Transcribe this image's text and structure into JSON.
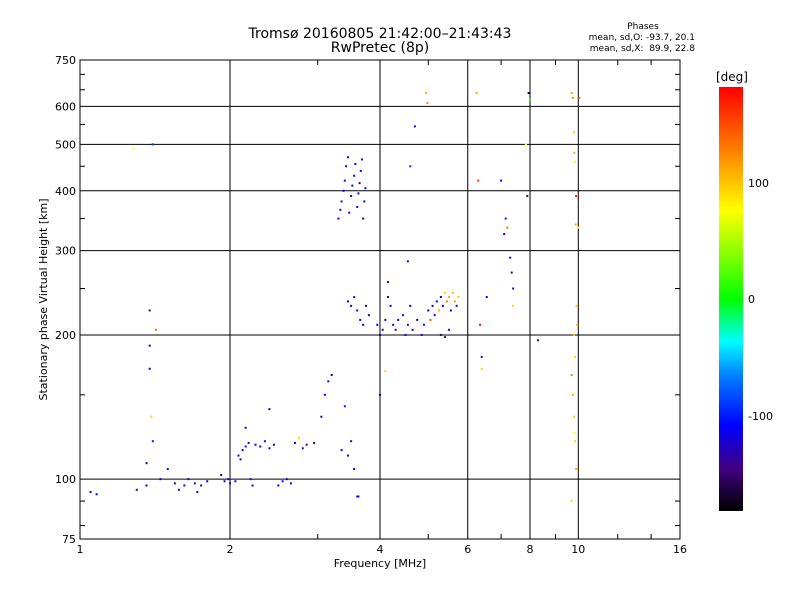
{
  "title": "Tromsø 20160805 21:42:00–21:43:43",
  "subtitle": "RwPretec (8p)",
  "phase_header": "Phases",
  "phase_stat_o": "mean, sd,O: -93.7, 20.1",
  "phase_stat_x": "mean, sd,X:  89.9, 22.8",
  "colorbar": {
    "title": "[deg]",
    "ticks": [
      "100",
      "0",
      "-100"
    ],
    "range": [
      -180,
      180
    ]
  },
  "chart_data": {
    "type": "scatter",
    "xlabel": "Frequency [MHz]",
    "ylabel": "Stationary phase Virtual Height [km]",
    "xscale": "log",
    "yscale": "log",
    "xlim": [
      1,
      16
    ],
    "ylim": [
      75,
      750
    ],
    "xticks": [
      1,
      2,
      4,
      6,
      8,
      10,
      16
    ],
    "yticks": [
      75,
      100,
      200,
      300,
      400,
      500,
      600,
      750
    ],
    "grid": true,
    "points": [
      [
        1.05,
        94,
        -110
      ],
      [
        1.08,
        93,
        -100
      ],
      [
        1.3,
        95,
        -120
      ],
      [
        1.36,
        97,
        -115
      ],
      [
        1.38,
        225,
        -120
      ],
      [
        1.38,
        190,
        -110
      ],
      [
        1.38,
        170,
        -115
      ],
      [
        1.39,
        135,
        110
      ],
      [
        1.4,
        120,
        -100
      ],
      [
        1.36,
        108,
        -110
      ],
      [
        1.42,
        205,
        140
      ],
      [
        1.28,
        490,
        100
      ],
      [
        1.4,
        500,
        -90
      ],
      [
        1.45,
        100,
        -110
      ],
      [
        1.5,
        105,
        -100
      ],
      [
        1.55,
        98,
        -120
      ],
      [
        1.58,
        95,
        -100
      ],
      [
        1.62,
        97,
        -110
      ],
      [
        1.65,
        100,
        -120
      ],
      [
        1.7,
        98,
        -100
      ],
      [
        1.72,
        94,
        -110
      ],
      [
        1.75,
        97,
        -130
      ],
      [
        1.8,
        99,
        -110
      ],
      [
        1.92,
        102,
        -110
      ],
      [
        1.95,
        99,
        -120
      ],
      [
        1.98,
        100,
        -100
      ],
      [
        2.0,
        98,
        -110
      ],
      [
        2.05,
        99,
        -120
      ],
      [
        2.08,
        112,
        -100
      ],
      [
        2.1,
        110,
        -130
      ],
      [
        2.12,
        115,
        -110
      ],
      [
        2.15,
        117,
        -100
      ],
      [
        2.15,
        128,
        -110
      ],
      [
        2.18,
        119,
        -120
      ],
      [
        2.2,
        100,
        -110
      ],
      [
        2.22,
        97,
        -100
      ],
      [
        2.25,
        118,
        -110
      ],
      [
        2.3,
        117,
        -120
      ],
      [
        2.35,
        120,
        -100
      ],
      [
        2.4,
        116,
        -110
      ],
      [
        2.45,
        118,
        -130
      ],
      [
        2.5,
        97,
        -110
      ],
      [
        2.55,
        99,
        -100
      ],
      [
        2.6,
        100,
        -120
      ],
      [
        2.65,
        98,
        -110
      ],
      [
        2.7,
        119,
        -110
      ],
      [
        2.75,
        122,
        110
      ],
      [
        2.8,
        116,
        -100
      ],
      [
        2.85,
        118,
        -120
      ],
      [
        2.95,
        119,
        -110
      ],
      [
        3.05,
        135,
        -120
      ],
      [
        3.1,
        150,
        -110
      ],
      [
        3.15,
        160,
        -100
      ],
      [
        3.2,
        165,
        -120
      ],
      [
        3.35,
        115,
        -110
      ],
      [
        3.4,
        142,
        -100
      ],
      [
        3.45,
        112,
        -110
      ],
      [
        3.5,
        120,
        -120
      ],
      [
        3.55,
        105,
        -110
      ],
      [
        3.6,
        92,
        -100
      ],
      [
        2.4,
        140,
        -110
      ],
      [
        3.62,
        92,
        -110
      ],
      [
        3.3,
        350,
        -110
      ],
      [
        3.33,
        365,
        -120
      ],
      [
        3.35,
        380,
        -100
      ],
      [
        3.38,
        400,
        -110
      ],
      [
        3.4,
        420,
        -130
      ],
      [
        3.42,
        450,
        -110
      ],
      [
        3.45,
        470,
        -100
      ],
      [
        3.47,
        360,
        -120
      ],
      [
        3.5,
        390,
        -110
      ],
      [
        3.52,
        410,
        -100
      ],
      [
        3.55,
        430,
        -120
      ],
      [
        3.57,
        455,
        -110
      ],
      [
        3.6,
        370,
        -100
      ],
      [
        3.62,
        395,
        -110
      ],
      [
        3.64,
        415,
        -130
      ],
      [
        3.66,
        440,
        -110
      ],
      [
        3.68,
        465,
        -100
      ],
      [
        3.7,
        350,
        -120
      ],
      [
        3.72,
        380,
        -110
      ],
      [
        3.74,
        405,
        -100
      ],
      [
        3.45,
        235,
        -110
      ],
      [
        3.5,
        230,
        -120
      ],
      [
        3.55,
        240,
        -100
      ],
      [
        3.6,
        225,
        -110
      ],
      [
        3.65,
        215,
        -120
      ],
      [
        3.7,
        210,
        -110
      ],
      [
        3.75,
        230,
        -100
      ],
      [
        3.8,
        220,
        -110
      ],
      [
        3.95,
        210,
        -110
      ],
      [
        4.0,
        200,
        -120
      ],
      [
        4.05,
        205,
        -100
      ],
      [
        4.1,
        215,
        -110
      ],
      [
        4.15,
        240,
        -120
      ],
      [
        4.2,
        230,
        -110
      ],
      [
        4.25,
        210,
        -100
      ],
      [
        4.3,
        205,
        -120
      ],
      [
        4.35,
        215,
        -110
      ],
      [
        4.45,
        220,
        -100
      ],
      [
        4.5,
        200,
        -110
      ],
      [
        4.55,
        210,
        -120
      ],
      [
        4.6,
        230,
        -110
      ],
      [
        4.65,
        205,
        -100
      ],
      [
        4.75,
        215,
        -110
      ],
      [
        4.85,
        200,
        -120
      ],
      [
        4.9,
        210,
        -100
      ],
      [
        5.0,
        225,
        -110
      ],
      [
        5.05,
        215,
        150
      ],
      [
        5.1,
        230,
        -110
      ],
      [
        5.15,
        220,
        -100
      ],
      [
        5.2,
        235,
        -110
      ],
      [
        5.25,
        225,
        120
      ],
      [
        5.3,
        240,
        -120
      ],
      [
        5.35,
        230,
        -110
      ],
      [
        5.4,
        245,
        110
      ],
      [
        5.45,
        235,
        130
      ],
      [
        5.5,
        240,
        120
      ],
      [
        5.55,
        225,
        -110
      ],
      [
        5.6,
        245,
        115
      ],
      [
        5.65,
        235,
        125
      ],
      [
        5.7,
        230,
        -110
      ],
      [
        5.75,
        240,
        110
      ],
      [
        5.3,
        200,
        -150
      ],
      [
        5.4,
        198,
        -140
      ],
      [
        5.5,
        205,
        -130
      ],
      [
        4.0,
        150,
        -110
      ],
      [
        4.1,
        168,
        110
      ],
      [
        4.55,
        285,
        -100
      ],
      [
        4.6,
        450,
        -90
      ],
      [
        4.7,
        545,
        -110
      ],
      [
        4.95,
        640,
        120
      ],
      [
        4.98,
        610,
        130
      ],
      [
        4.15,
        258,
        -100
      ],
      [
        6.25,
        640,
        120
      ],
      [
        6.3,
        420,
        160
      ],
      [
        6.35,
        210,
        170
      ],
      [
        6.4,
        180,
        -100
      ],
      [
        6.4,
        170,
        110
      ],
      [
        6.55,
        240,
        -110
      ],
      [
        7.0,
        420,
        -100
      ],
      [
        7.1,
        325,
        -110
      ],
      [
        7.15,
        350,
        -100
      ],
      [
        7.2,
        335,
        140
      ],
      [
        7.3,
        290,
        -110
      ],
      [
        7.35,
        270,
        -120
      ],
      [
        7.4,
        250,
        -100
      ],
      [
        7.4,
        230,
        110
      ],
      [
        7.85,
        500,
        100
      ],
      [
        7.9,
        390,
        -150
      ],
      [
        7.95,
        640,
        -160
      ],
      [
        8.0,
        620,
        20
      ],
      [
        8.3,
        195,
        -100
      ],
      [
        9.7,
        640,
        120
      ],
      [
        9.75,
        625,
        130
      ],
      [
        9.8,
        530,
        110
      ],
      [
        9.82,
        480,
        120
      ],
      [
        9.85,
        460,
        100
      ],
      [
        9.88,
        340,
        120
      ],
      [
        9.9,
        390,
        170
      ],
      [
        9.92,
        230,
        110
      ],
      [
        9.95,
        210,
        120
      ],
      [
        9.8,
        200,
        115
      ],
      [
        9.85,
        180,
        110
      ],
      [
        9.7,
        165,
        130
      ],
      [
        9.75,
        150,
        120
      ],
      [
        9.8,
        135,
        110
      ],
      [
        9.82,
        125,
        100
      ],
      [
        9.85,
        120,
        110
      ],
      [
        9.9,
        105,
        120
      ],
      [
        9.7,
        90,
        110
      ],
      [
        10.0,
        335,
        105
      ],
      [
        10.05,
        625,
        130
      ]
    ]
  }
}
